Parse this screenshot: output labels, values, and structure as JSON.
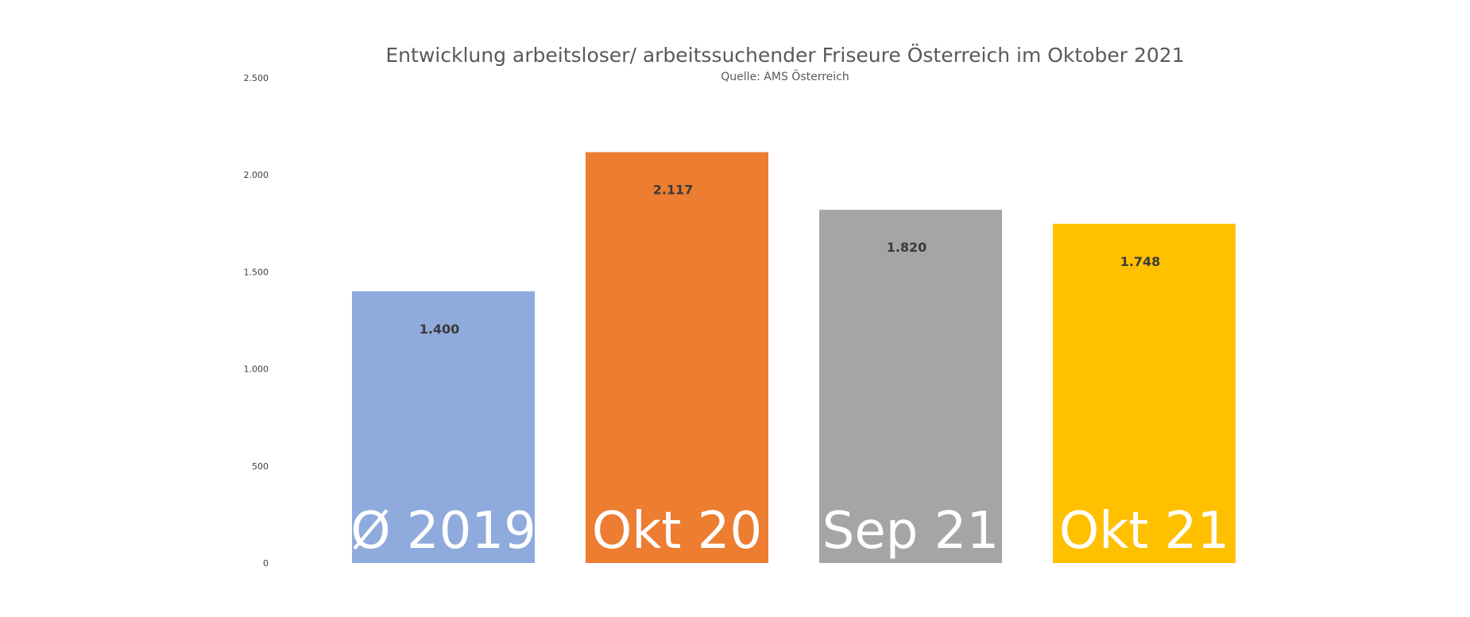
{
  "chart_data": {
    "type": "bar",
    "title": "Entwicklung arbeitsloser/ arbeitssuchender Friseure Österreich im Oktober 2021",
    "subtitle": "Quelle: AMS Österreich",
    "categories": [
      "Ø 2019",
      "Okt 20",
      "Sep 21",
      "Okt 21"
    ],
    "values": [
      1400,
      2117,
      1820,
      1748
    ],
    "data_labels": [
      "1.400",
      "2.117",
      "1.820",
      "1.748"
    ],
    "colors": [
      "#8FAADC",
      "#ED7D31",
      "#A5A5A5",
      "#FFC000"
    ],
    "ylim": [
      0,
      2500
    ],
    "yticks": [
      0,
      500,
      1000,
      1500,
      2000,
      2500
    ],
    "ytick_labels": [
      "0",
      "500",
      "1.000",
      "1.500",
      "2.000",
      "2.500"
    ],
    "grid": false,
    "legend": "none",
    "xlabel": "",
    "ylabel": ""
  }
}
